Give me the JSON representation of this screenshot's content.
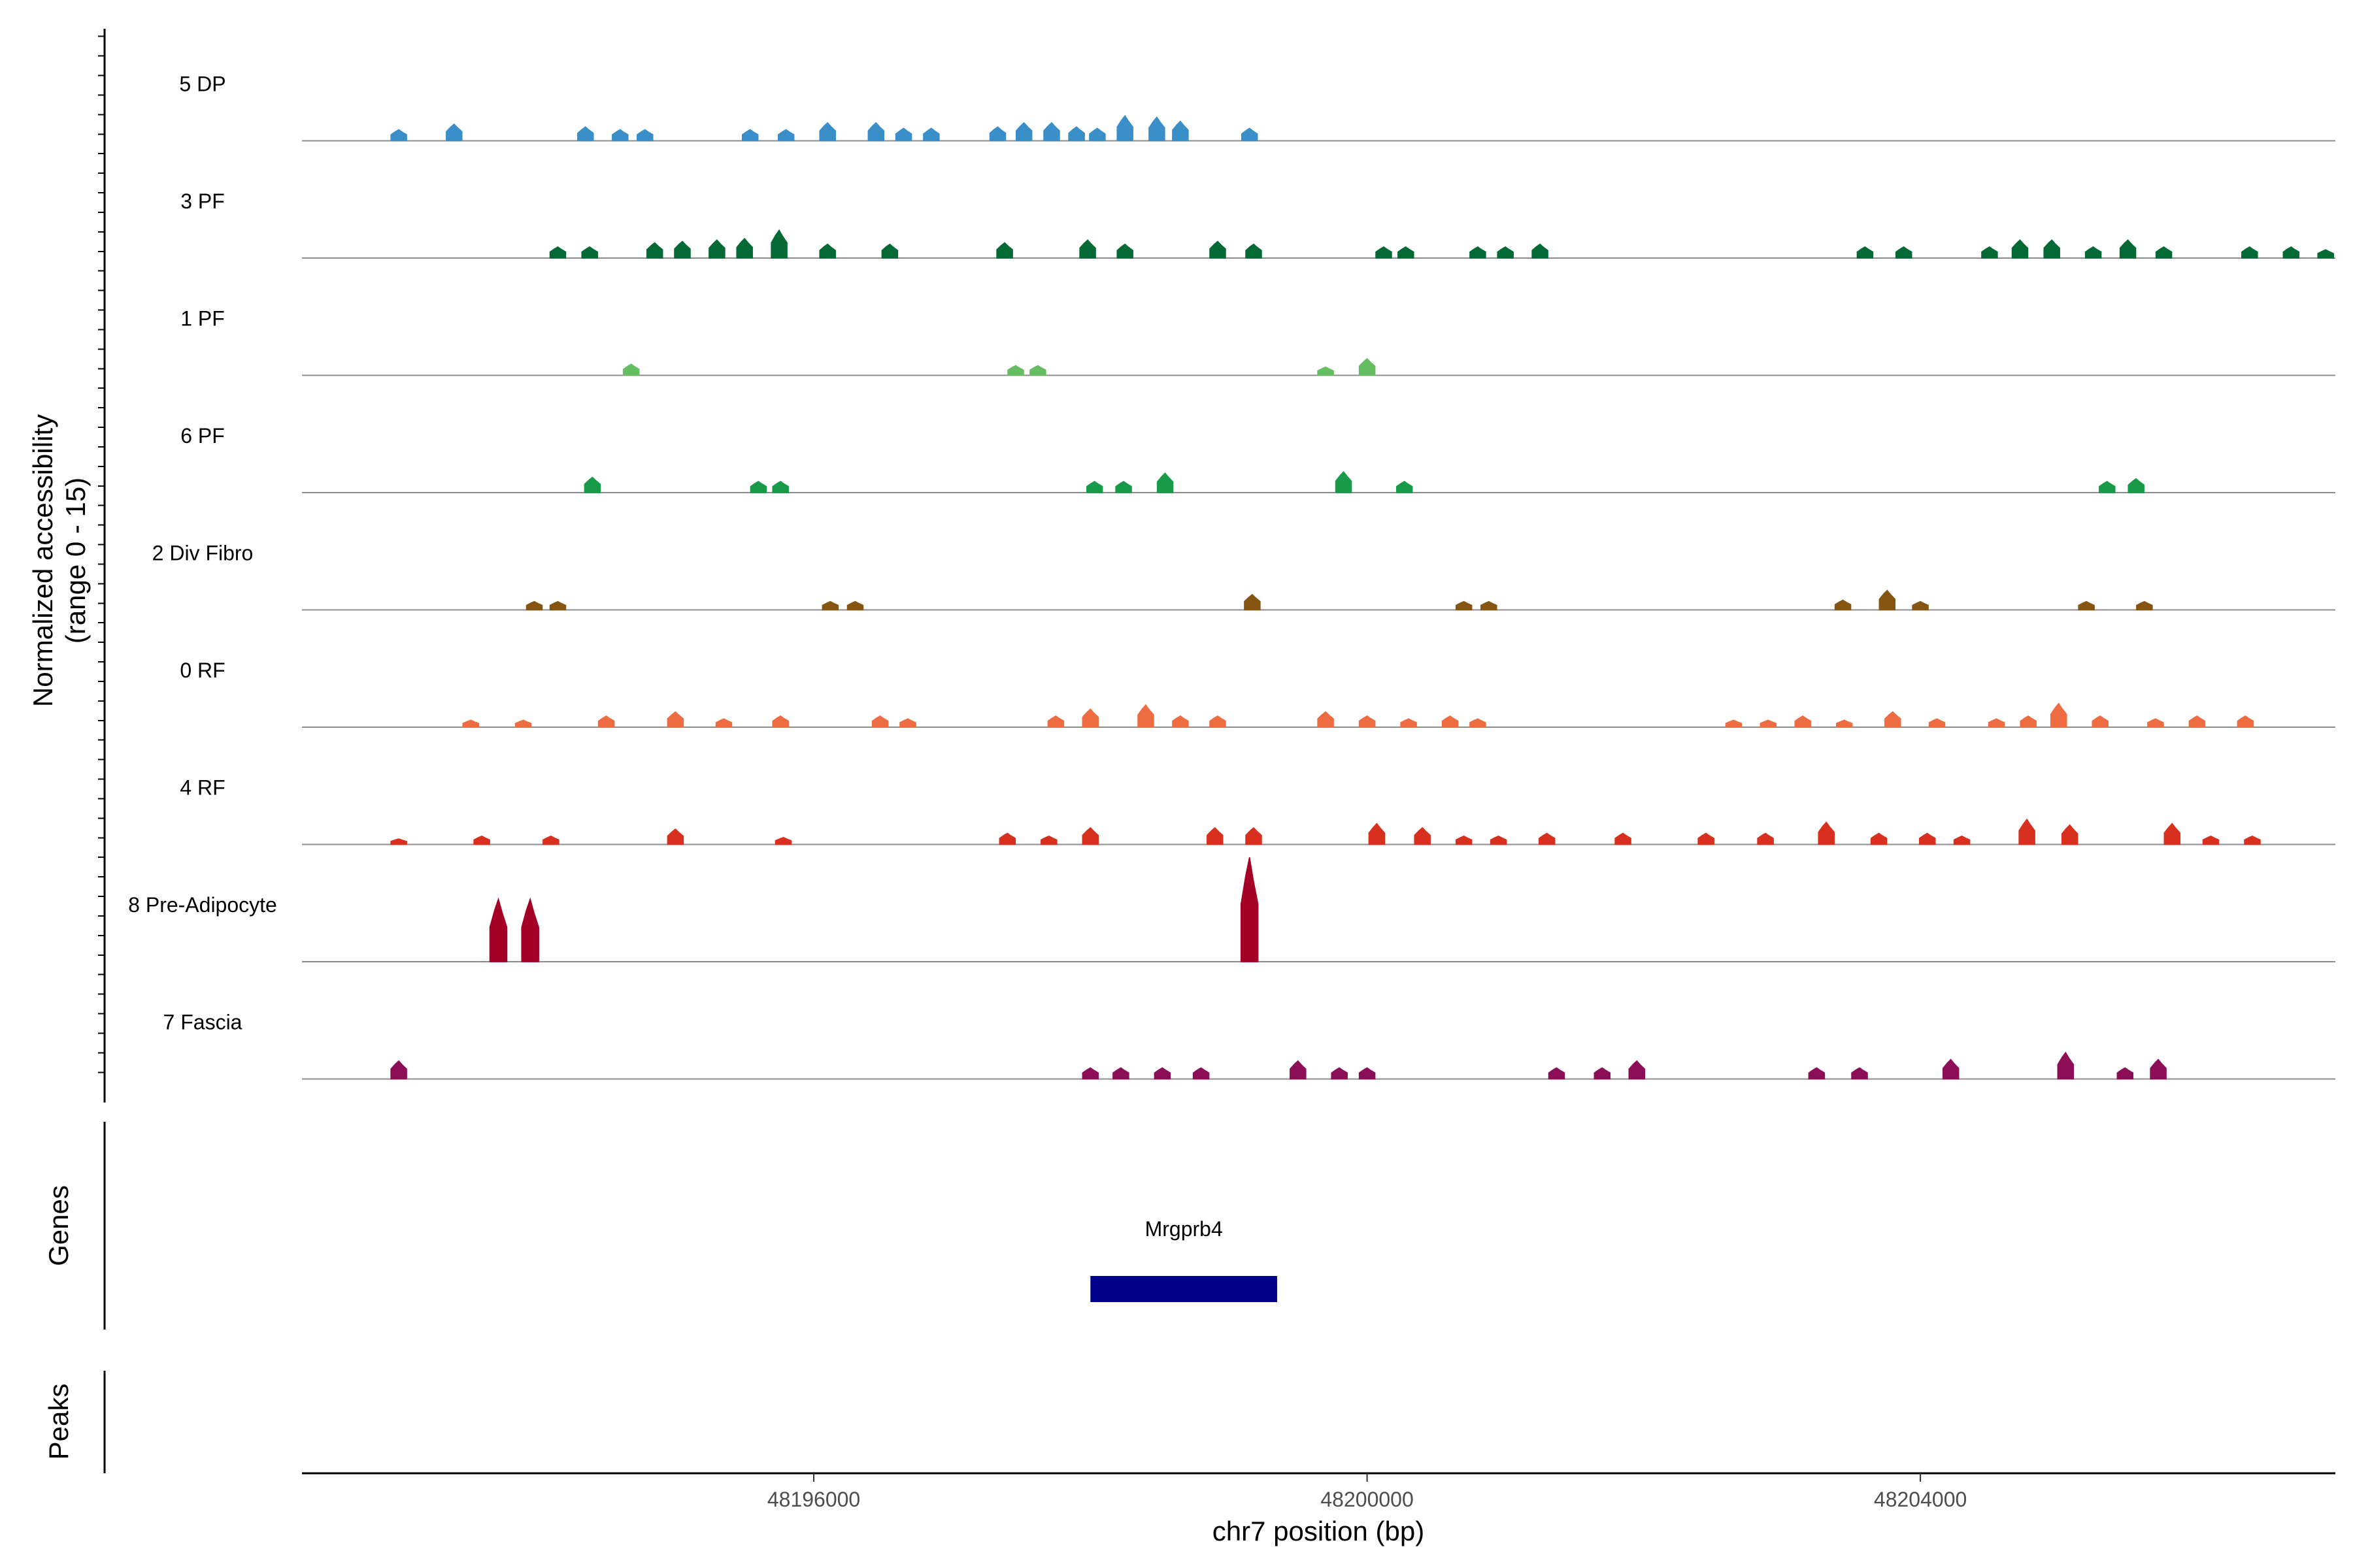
{
  "chart_data": {
    "type": "area",
    "chrom": "chr7",
    "xlabel": "chr7 position (bp)",
    "ylabel": [
      "Normalized accessibility",
      "(range 0 - 15)"
    ],
    "xlim": [
      48192300,
      48207000
    ],
    "ylim": [
      0,
      15
    ],
    "x_ticks": [
      48196000,
      48200000,
      48204000
    ],
    "x_tick_labels": [
      "48196000",
      "48200000",
      "48204000"
    ],
    "grid": false,
    "legend": "none",
    "track_panel_labels": {
      "genes": "Genes",
      "peaks": "Peaks"
    },
    "series": [
      {
        "name": "5 DP",
        "color": "#3a8fc8",
        "peaks": [
          [
            48193000,
            1.6
          ],
          [
            48193400,
            2.4
          ],
          [
            48194350,
            2.0
          ],
          [
            48194600,
            1.6
          ],
          [
            48194780,
            1.6
          ],
          [
            48195540,
            1.6
          ],
          [
            48195800,
            1.6
          ],
          [
            48196100,
            2.6
          ],
          [
            48196450,
            2.6
          ],
          [
            48196650,
            1.8
          ],
          [
            48196850,
            1.8
          ],
          [
            48197330,
            2.0
          ],
          [
            48197520,
            2.6
          ],
          [
            48197720,
            2.6
          ],
          [
            48197900,
            2.0
          ],
          [
            48198050,
            1.8
          ],
          [
            48198250,
            3.6
          ],
          [
            48198480,
            3.4
          ],
          [
            48198650,
            2.8
          ],
          [
            48199150,
            1.8
          ]
        ]
      },
      {
        "name": "3 PF",
        "color": "#046a35",
        "peaks": [
          [
            48194150,
            1.6
          ],
          [
            48194380,
            1.6
          ],
          [
            48194850,
            2.2
          ],
          [
            48195050,
            2.4
          ],
          [
            48195300,
            2.6
          ],
          [
            48195500,
            2.8
          ],
          [
            48195750,
            4.0
          ],
          [
            48196100,
            2.0
          ],
          [
            48196550,
            2.0
          ],
          [
            48197380,
            2.2
          ],
          [
            48197980,
            2.6
          ],
          [
            48198250,
            2.0
          ],
          [
            48198920,
            2.4
          ],
          [
            48199180,
            2.0
          ],
          [
            48200120,
            1.6
          ],
          [
            48200280,
            1.6
          ],
          [
            48200800,
            1.6
          ],
          [
            48201000,
            1.6
          ],
          [
            48201250,
            2.0
          ],
          [
            48203600,
            1.6
          ],
          [
            48203880,
            1.6
          ],
          [
            48204500,
            1.6
          ],
          [
            48204720,
            2.6
          ],
          [
            48204950,
            2.6
          ],
          [
            48205250,
            1.6
          ],
          [
            48205500,
            2.6
          ],
          [
            48205760,
            1.6
          ],
          [
            48206380,
            1.6
          ],
          [
            48206680,
            1.6
          ],
          [
            48206930,
            1.2
          ]
        ]
      },
      {
        "name": "1 PF",
        "color": "#67be62",
        "peaks": [
          [
            48194680,
            1.6
          ],
          [
            48197460,
            1.4
          ],
          [
            48197620,
            1.4
          ],
          [
            48199700,
            1.2
          ],
          [
            48200000,
            2.4
          ]
        ]
      },
      {
        "name": "6 PF",
        "color": "#199a48",
        "peaks": [
          [
            48194400,
            2.2
          ],
          [
            48195600,
            1.6
          ],
          [
            48195760,
            1.6
          ],
          [
            48198030,
            1.6
          ],
          [
            48198240,
            1.6
          ],
          [
            48198540,
            2.8
          ],
          [
            48199830,
            3.0
          ],
          [
            48200270,
            1.6
          ],
          [
            48205350,
            1.6
          ],
          [
            48205560,
            2.0
          ]
        ]
      },
      {
        "name": "2 Div Fibro",
        "color": "#855511",
        "peaks": [
          [
            48193980,
            1.2
          ],
          [
            48194150,
            1.2
          ],
          [
            48196120,
            1.2
          ],
          [
            48196300,
            1.2
          ],
          [
            48199170,
            2.2
          ],
          [
            48200700,
            1.2
          ],
          [
            48200880,
            1.2
          ],
          [
            48203440,
            1.4
          ],
          [
            48203760,
            2.8
          ],
          [
            48204000,
            1.2
          ],
          [
            48205200,
            1.2
          ],
          [
            48205620,
            1.2
          ]
        ]
      },
      {
        "name": "0 RF",
        "color": "#ee6c41",
        "peaks": [
          [
            48193520,
            1.0
          ],
          [
            48193900,
            1.0
          ],
          [
            48194500,
            1.6
          ],
          [
            48195000,
            2.2
          ],
          [
            48195350,
            1.2
          ],
          [
            48195760,
            1.6
          ],
          [
            48196480,
            1.6
          ],
          [
            48196680,
            1.2
          ],
          [
            48197750,
            1.6
          ],
          [
            48198000,
            2.6
          ],
          [
            48198400,
            3.2
          ],
          [
            48198650,
            1.6
          ],
          [
            48198920,
            1.6
          ],
          [
            48199700,
            2.2
          ],
          [
            48200000,
            1.6
          ],
          [
            48200300,
            1.2
          ],
          [
            48200600,
            1.6
          ],
          [
            48200800,
            1.2
          ],
          [
            48202650,
            1.0
          ],
          [
            48202900,
            1.0
          ],
          [
            48203150,
            1.6
          ],
          [
            48203450,
            1.0
          ],
          [
            48203800,
            2.2
          ],
          [
            48204120,
            1.2
          ],
          [
            48204550,
            1.2
          ],
          [
            48204780,
            1.6
          ],
          [
            48205000,
            3.4
          ],
          [
            48205300,
            1.6
          ],
          [
            48205700,
            1.2
          ],
          [
            48206000,
            1.6
          ],
          [
            48206350,
            1.6
          ]
        ]
      },
      {
        "name": "4 RF",
        "color": "#d7301f",
        "peaks": [
          [
            48193000,
            0.8
          ],
          [
            48193600,
            1.2
          ],
          [
            48194100,
            1.2
          ],
          [
            48195000,
            2.2
          ],
          [
            48195780,
            1.0
          ],
          [
            48197400,
            1.6
          ],
          [
            48197700,
            1.2
          ],
          [
            48198000,
            2.4
          ],
          [
            48198900,
            2.4
          ],
          [
            48199180,
            2.4
          ],
          [
            48200070,
            3.0
          ],
          [
            48200400,
            2.4
          ],
          [
            48200700,
            1.2
          ],
          [
            48200950,
            1.2
          ],
          [
            48201300,
            1.6
          ],
          [
            48201850,
            1.6
          ],
          [
            48202450,
            1.6
          ],
          [
            48202880,
            1.6
          ],
          [
            48203320,
            3.2
          ],
          [
            48203700,
            1.6
          ],
          [
            48204050,
            1.6
          ],
          [
            48204300,
            1.2
          ],
          [
            48204770,
            3.6
          ],
          [
            48205080,
            2.8
          ],
          [
            48205820,
            3.0
          ],
          [
            48206100,
            1.2
          ],
          [
            48206400,
            1.2
          ]
        ]
      },
      {
        "name": "8 Pre-Adipocyte",
        "color": "#a50026",
        "peaks": [
          [
            48193720,
            9.0
          ],
          [
            48193950,
            9.0
          ],
          [
            48199150,
            15.0
          ]
        ]
      },
      {
        "name": "7 Fascia",
        "color": "#8c0e57",
        "peaks": [
          [
            48193000,
            2.6
          ],
          [
            48198000,
            1.6
          ],
          [
            48198220,
            1.6
          ],
          [
            48198520,
            1.6
          ],
          [
            48198800,
            1.6
          ],
          [
            48199500,
            2.6
          ],
          [
            48199800,
            1.6
          ],
          [
            48200000,
            1.6
          ],
          [
            48201370,
            1.6
          ],
          [
            48201700,
            1.6
          ],
          [
            48201950,
            2.6
          ],
          [
            48203250,
            1.6
          ],
          [
            48203560,
            1.6
          ],
          [
            48204220,
            2.8
          ],
          [
            48205050,
            3.8
          ],
          [
            48205480,
            1.6
          ],
          [
            48205720,
            2.8
          ]
        ]
      }
    ],
    "genes": [
      {
        "name": "Mrgprb4",
        "start": 48198000,
        "end": 48199350,
        "color": "#00008b"
      }
    ]
  }
}
